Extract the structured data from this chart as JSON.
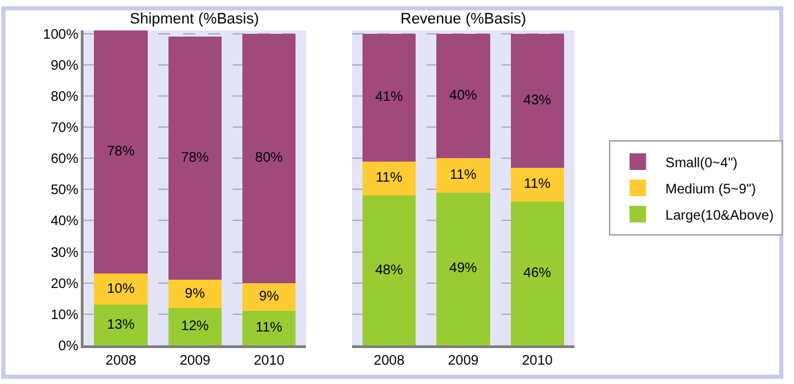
{
  "chart_data": [
    {
      "type": "bar",
      "title": "Shipment (%Basis)",
      "stacked": true,
      "categories": [
        "2008",
        "2009",
        "2010"
      ],
      "ylim": [
        0,
        101
      ],
      "yticks": [
        {
          "value": 0,
          "label": "0%"
        },
        {
          "value": 10,
          "label": "10%"
        },
        {
          "value": 20,
          "label": "20%"
        },
        {
          "value": 30,
          "label": "30%"
        },
        {
          "value": 40,
          "label": "40%"
        },
        {
          "value": 50,
          "label": "50%"
        },
        {
          "value": 60,
          "label": "60%"
        },
        {
          "value": 70,
          "label": "70%"
        },
        {
          "value": 80,
          "label": "80%"
        },
        {
          "value": 90,
          "label": "90%"
        },
        {
          "value": 100,
          "label": "100%"
        }
      ],
      "grid": "y",
      "legend": false,
      "series": [
        {
          "color": "#99cc33",
          "values": [
            13,
            12,
            11
          ],
          "value_labels": [
            "13%",
            "12%",
            "11%"
          ]
        },
        {
          "color": "#ffcc33",
          "values": [
            10,
            9,
            9
          ],
          "value_labels": [
            "10%",
            "9%",
            "9%"
          ]
        },
        {
          "color": "#a04a7c",
          "values": [
            78,
            78,
            80
          ],
          "value_labels": [
            "78%",
            "78%",
            "80%"
          ]
        }
      ]
    },
    {
      "type": "bar",
      "title": "Revenue (%Basis)",
      "stacked": true,
      "categories": [
        "2008",
        "2009",
        "2010"
      ],
      "ylim": [
        0,
        101
      ],
      "grid": "y",
      "legend": "right",
      "tick_labels": "x",
      "series": [
        {
          "name": "Large(10&Above)",
          "color": "#99cc33",
          "values": [
            48,
            49,
            46
          ],
          "value_labels": [
            "48%",
            "49%",
            "46%"
          ]
        },
        {
          "name": "Medium (5~9\")",
          "color": "#ffcc33",
          "values": [
            11,
            11,
            11
          ],
          "value_labels": [
            "11%",
            "11%",
            "11%"
          ]
        },
        {
          "name": "Small(0~4\")",
          "color": "#a04a7c",
          "values": [
            41,
            40,
            43
          ],
          "value_labels": [
            "41%",
            "40%",
            "43%"
          ]
        }
      ]
    }
  ]
}
